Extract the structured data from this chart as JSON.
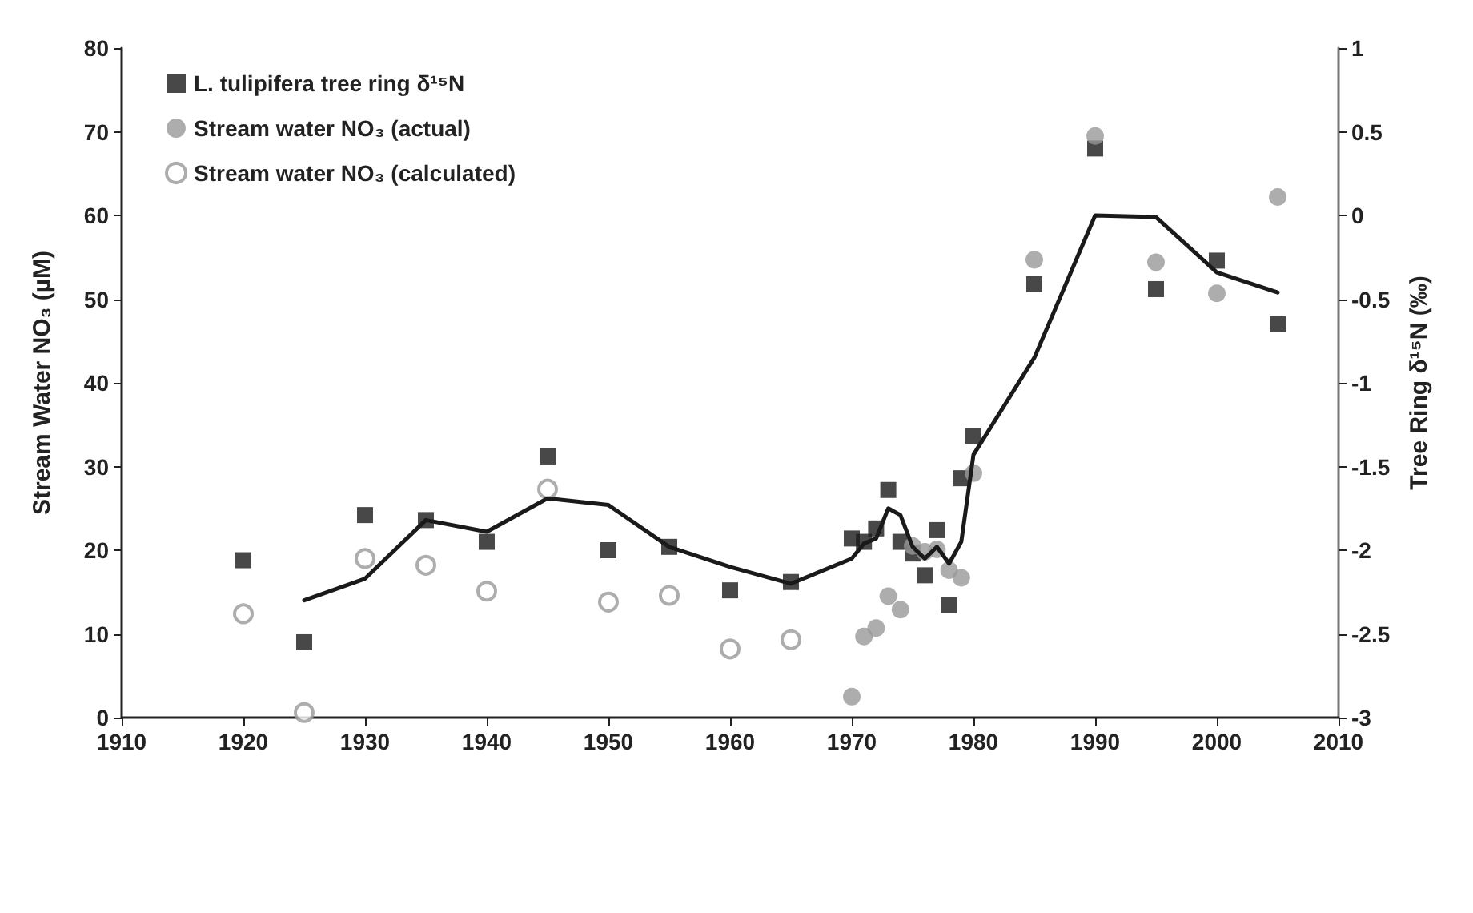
{
  "chart_data": {
    "type": "scatter",
    "xlabel": null,
    "ylabel": "Stream Water NO₃ (µM)",
    "y2label": "Tree Ring δ¹⁵N (‰)",
    "xlim": [
      1910,
      2010
    ],
    "xticks": [
      1910,
      1920,
      1930,
      1940,
      1950,
      1960,
      1970,
      1980,
      1990,
      2000,
      2010
    ],
    "ylim": [
      0,
      80
    ],
    "yticks": [
      0,
      10,
      20,
      30,
      40,
      50,
      60,
      70,
      80
    ],
    "y2lim": [
      -3,
      1
    ],
    "y2ticks": [
      -3,
      -2.5,
      -2,
      -1.5,
      -1,
      -0.5,
      0,
      0.5,
      1
    ],
    "grid": false,
    "legend": "top left",
    "series": [
      {
        "name": "L. tulipifera tree ring δ¹⁵N",
        "axis": "y2",
        "marker": "square",
        "color": "#1a1a1a",
        "x": [
          1920,
          1925,
          1930,
          1935,
          1940,
          1945,
          1950,
          1955,
          1960,
          1965,
          1970,
          1971,
          1972,
          1973,
          1974,
          1975,
          1976,
          1977,
          1978,
          1979,
          1980,
          1985,
          1990,
          1995,
          2000,
          2005
        ],
        "values": [
          -2.06,
          -2.55,
          -1.79,
          -1.82,
          -1.95,
          -1.44,
          -2.0,
          -1.98,
          -2.24,
          -2.19,
          -1.93,
          -1.95,
          -1.87,
          -1.64,
          -1.95,
          -2.02,
          -2.15,
          -1.88,
          -2.33,
          -1.57,
          -1.32,
          -0.41,
          0.4,
          -0.44,
          -0.27,
          -0.65
        ]
      },
      {
        "name": "Stream water NO₃ (actual)",
        "marker": "circle",
        "color": "#999999",
        "x": [
          1970,
          1971,
          1972,
          1973,
          1974,
          1975,
          1976,
          1977,
          1978,
          1979,
          1980,
          1985,
          1990,
          1995,
          2000,
          2005
        ],
        "values": [
          2.5,
          9.7,
          10.7,
          14.5,
          12.9,
          20.5,
          19.8,
          20.1,
          17.6,
          16.7,
          29.2,
          54.7,
          69.5,
          54.4,
          50.7,
          62.2
        ]
      },
      {
        "name": "Stream water NO₃ (calculated)",
        "marker": "circle",
        "color": "#999999",
        "x": [
          1920,
          1925,
          1930,
          1935,
          1940,
          1945,
          1950,
          1955,
          1960,
          1965
        ],
        "values": [
          12.4,
          0.6,
          19,
          18.2,
          15.1,
          27.3,
          13.8,
          14.6,
          8.2,
          9.3
        ]
      },
      {
        "type": "line",
        "axis": "y2",
        "marker": "none",
        "line_style": "solid",
        "color": "#1a1a1a",
        "x": [
          1925,
          1930,
          1935,
          1940,
          1945,
          1950,
          1955,
          1960,
          1965,
          1970,
          1971,
          1972,
          1973,
          1974,
          1975,
          1976,
          1977,
          1978,
          1979,
          1980,
          1985,
          1990,
          1995,
          2000,
          2005
        ],
        "values": [
          -2.3,
          -2.17,
          -1.82,
          -1.89,
          -1.69,
          -1.73,
          -1.98,
          -2.1,
          -2.2,
          -2.05,
          -1.96,
          -1.93,
          -1.75,
          -1.79,
          -1.98,
          -2.05,
          -1.98,
          -2.08,
          -1.95,
          -1.43,
          -0.85,
          0,
          -0.01,
          -0.34,
          -0.46
        ]
      }
    ]
  }
}
